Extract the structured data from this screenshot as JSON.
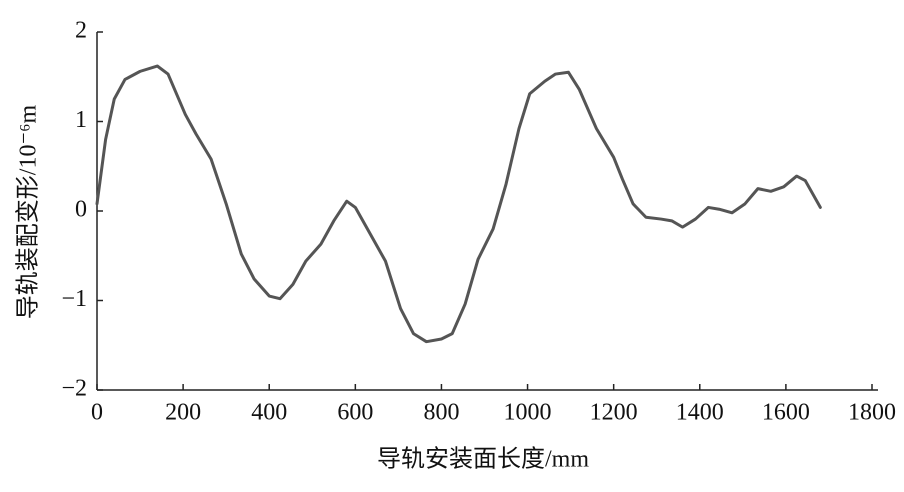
{
  "chart_data": {
    "type": "line",
    "x_label": "导轨安装面长度/mm",
    "y_label": "导轨装配变形/10⁻⁶m",
    "xlim": [
      0,
      1800
    ],
    "ylim": [
      -2,
      2
    ],
    "xticks": [
      0,
      200,
      400,
      600,
      800,
      1000,
      1200,
      1400,
      1600,
      1800
    ],
    "yticks": [
      {
        "value": -2,
        "label": "−2"
      },
      {
        "value": -1,
        "label": "−1"
      },
      0,
      1,
      2
    ],
    "grid": false,
    "x": [
      0,
      20,
      40,
      65,
      100,
      140,
      165,
      205,
      230,
      265,
      300,
      335,
      365,
      400,
      425,
      455,
      485,
      520,
      550,
      580,
      600,
      635,
      670,
      705,
      735,
      765,
      800,
      825,
      855,
      885,
      920,
      950,
      980,
      1005,
      1040,
      1065,
      1095,
      1120,
      1160,
      1200,
      1220,
      1245,
      1275,
      1310,
      1335,
      1360,
      1390,
      1420,
      1445,
      1475,
      1505,
      1535,
      1565,
      1595,
      1625,
      1645,
      1680
    ],
    "series": [
      {
        "name": "导轨装配变形",
        "color": "#555555",
        "values": [
          0.08,
          0.8,
          1.25,
          1.47,
          1.56,
          1.62,
          1.53,
          1.08,
          0.86,
          0.58,
          0.08,
          -0.48,
          -0.76,
          -0.95,
          -0.98,
          -0.82,
          -0.56,
          -0.37,
          -0.11,
          0.11,
          0.04,
          -0.26,
          -0.56,
          -1.09,
          -1.37,
          -1.46,
          -1.43,
          -1.37,
          -1.04,
          -0.54,
          -0.2,
          0.3,
          0.92,
          1.31,
          1.45,
          1.53,
          1.55,
          1.36,
          0.92,
          0.6,
          0.36,
          0.08,
          -0.07,
          -0.09,
          -0.11,
          -0.18,
          -0.09,
          0.04,
          0.02,
          -0.02,
          0.08,
          0.25,
          0.22,
          0.27,
          0.39,
          0.34,
          0.04
        ]
      }
    ]
  }
}
